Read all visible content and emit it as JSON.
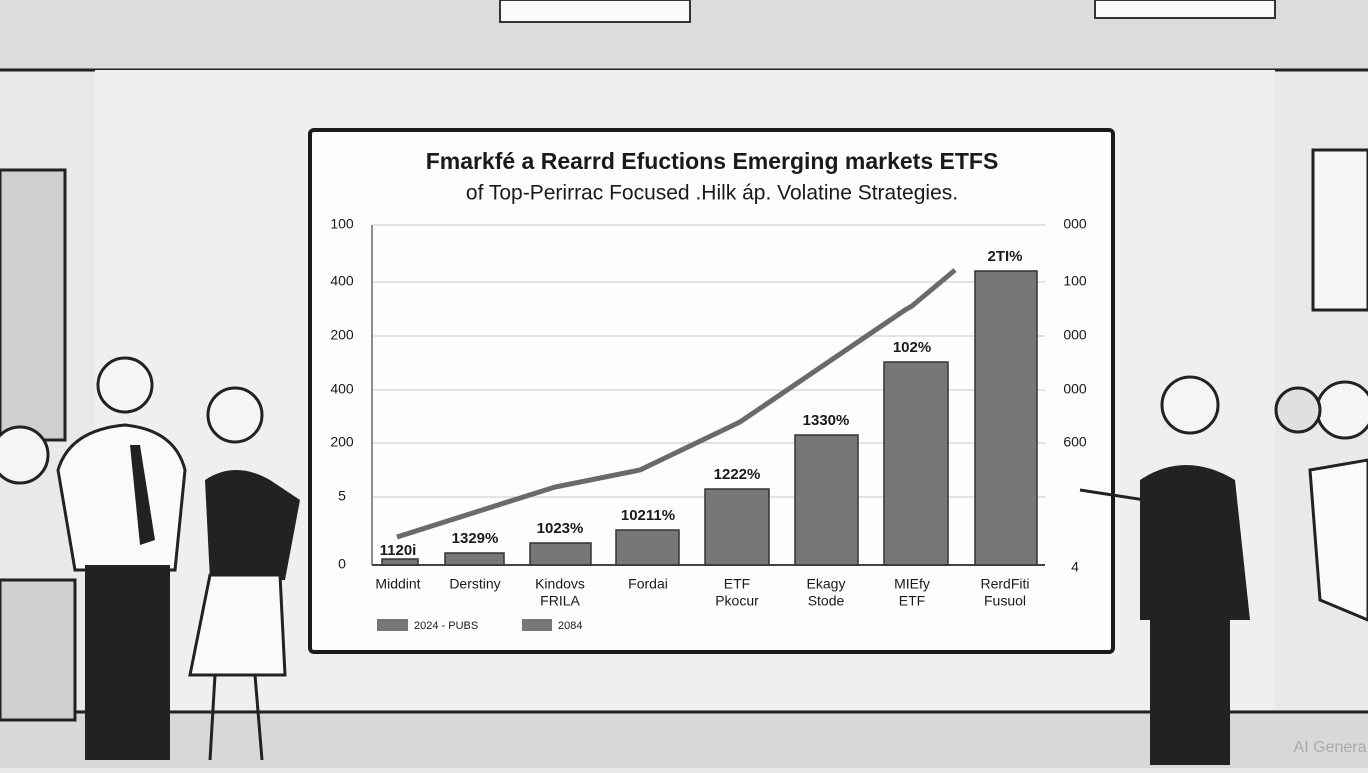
{
  "board": {
    "title": "Fmarkfé a Rearrd Efuctions Emerging markets ETFS",
    "subtitle": "of Top-Perirrac Focused .Hilk áp. Volatine Strategies.",
    "left_axis": [
      "100",
      "400",
      "200",
      "400",
      "200",
      "5",
      "0"
    ],
    "right_axis": [
      "000",
      "100",
      "000",
      "000",
      "600",
      "",
      "4"
    ],
    "categories": [
      [
        "Middint"
      ],
      [
        "Derstiny"
      ],
      [
        "Kindovs",
        "FRILA"
      ],
      [
        "Fordai"
      ],
      [
        "ETF",
        "Pkocur"
      ],
      [
        "Ekagy",
        "Stode"
      ],
      [
        "MIEfy",
        "ETF"
      ],
      [
        "RerdFiti",
        "Fusuol"
      ]
    ],
    "bar_labels": [
      "1120i",
      "1329%",
      "1023%",
      "10211%",
      "1222%",
      "1330%",
      "102%",
      "2TI%"
    ],
    "legend": [
      "2024 - PUBS",
      "2084"
    ]
  },
  "watermark": "AI Genera"
}
